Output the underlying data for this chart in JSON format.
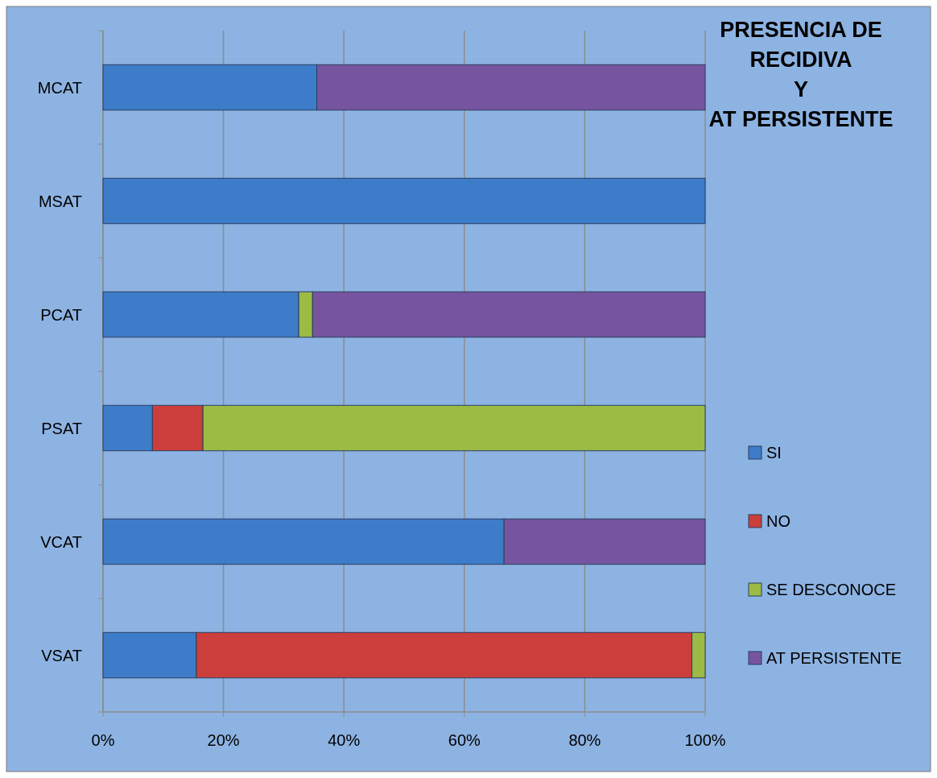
{
  "chart_data": {
    "type": "bar",
    "orientation": "horizontal",
    "stacked": true,
    "title": "PRESENCIA DE\nRECIDIVA\nY\nAT PERSISTENTE",
    "categories": [
      "MCAT",
      "MSAT",
      "PCAT",
      "PSAT",
      "VCAT",
      "VSAT"
    ],
    "series": [
      {
        "name": "SI",
        "color": "#3d7cc9",
        "values": [
          35.5,
          100,
          32.5,
          8.2,
          66.6,
          15.5
        ]
      },
      {
        "name": "NO",
        "color": "#cc3e3b",
        "values": [
          0,
          0,
          0,
          8.4,
          0,
          82.3
        ]
      },
      {
        "name": "SE DESCONOCE",
        "color": "#9bbb45",
        "values": [
          0,
          0,
          2.3,
          83.4,
          0,
          2.2
        ]
      },
      {
        "name": "AT PERSISTENTE",
        "color": "#7754a0",
        "values": [
          64.5,
          0,
          65.2,
          0,
          33.4,
          0
        ]
      }
    ],
    "xlim": [
      0,
      100
    ],
    "xticks": [
      {
        "value": 0,
        "label": "0%"
      },
      {
        "value": 20,
        "label": "20%"
      },
      {
        "value": 40,
        "label": "40%"
      },
      {
        "value": 60,
        "label": "60%"
      },
      {
        "value": 80,
        "label": "80%"
      },
      {
        "value": 100,
        "label": "100%"
      }
    ],
    "grid": "x",
    "legend": "right"
  }
}
